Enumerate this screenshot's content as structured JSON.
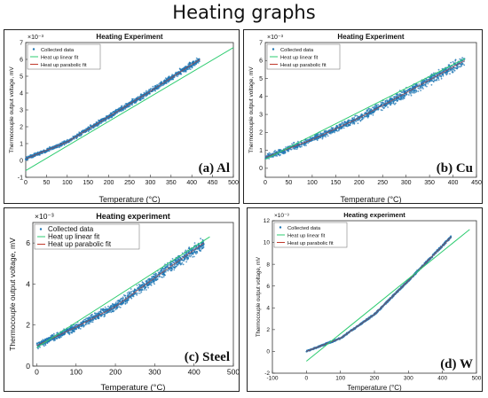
{
  "page_title": "Heating graphs",
  "chart_data": [
    {
      "id": "a",
      "type": "scatter",
      "title": "Heating Experiment",
      "xlabel": "Temperature (°C)",
      "ylabel": "Thermocouple output voltage, mV",
      "multiplier": "×10⁻³",
      "xlim": [
        0,
        500
      ],
      "ylim": [
        -1,
        7
      ],
      "xticks": [
        "0",
        "50",
        "100",
        "150",
        "200",
        "250",
        "300",
        "350",
        "400",
        "450",
        "500"
      ],
      "yticks": [
        "-1",
        "0",
        "1",
        "2",
        "3",
        "4",
        "5",
        "6",
        "7"
      ],
      "panel_label": "(a) Al",
      "legend": [
        "Collected data",
        "Heat up linear fit",
        "Heat up parabolic fit"
      ],
      "legend_position": "top-left",
      "colors": {
        "data": "#1f77b4",
        "linear": "#2ecc71",
        "parabolic": "#c0392b"
      },
      "scatter": {
        "x_max": 420,
        "spread": 0.22
      },
      "curve_parabolic": [
        [
          0,
          0.1
        ],
        [
          100,
          1.1
        ],
        [
          200,
          2.6
        ],
        [
          300,
          4.1
        ],
        [
          400,
          5.7
        ],
        [
          420,
          6.0
        ]
      ],
      "linear_fit": [
        [
          0,
          -0.6
        ],
        [
          500,
          6.7
        ]
      ]
    },
    {
      "id": "b",
      "type": "scatter",
      "title": "Heating Experiment",
      "xlabel": "Temperature (°C)",
      "ylabel": "Thermocouple output voltage, mV",
      "multiplier": "×10⁻³",
      "xlim": [
        0,
        450
      ],
      "ylim": [
        -0.5,
        7
      ],
      "xticks": [
        "0",
        "50",
        "100",
        "150",
        "200",
        "250",
        "300",
        "350",
        "400",
        "450"
      ],
      "yticks": [
        "0",
        "1",
        "2",
        "3",
        "4",
        "5",
        "6",
        "7"
      ],
      "panel_label": "(b) Cu",
      "legend": [
        "Collected data",
        "Heat up linear fit",
        "Heat up parabolic fit"
      ],
      "legend_position": "top-left",
      "colors": {
        "data": "#1f77b4",
        "linear": "#2ecc71",
        "parabolic": "#c0392b"
      },
      "scatter": {
        "x_max": 425,
        "spread": 0.35
      },
      "curve_parabolic": [
        [
          0,
          0.6
        ],
        [
          100,
          1.6
        ],
        [
          200,
          2.8
        ],
        [
          300,
          4.2
        ],
        [
          425,
          6.0
        ]
      ],
      "linear_fit": [
        [
          0,
          0.5
        ],
        [
          425,
          6.1
        ]
      ]
    },
    {
      "id": "c",
      "type": "scatter",
      "title": "Heating experiment",
      "xlabel": "Temperature (°C)",
      "ylabel": "Thermocouple output voltage, mV",
      "multiplier": "×10⁻³",
      "xlim": [
        -10,
        500
      ],
      "ylim": [
        0,
        7
      ],
      "xticks": [
        "0",
        "100",
        "200",
        "300",
        "400",
        "500"
      ],
      "yticks": [
        "0",
        "2",
        "4",
        "6"
      ],
      "panel_label": "(c) Steel",
      "legend": [
        "Collected data",
        "Heat up linear fit",
        "Heat up parabolic fit"
      ],
      "legend_position": "top-left",
      "colors": {
        "data": "#1f77b4",
        "linear": "#2ecc71",
        "parabolic": "#c0392b"
      },
      "scatter": {
        "x_max": 425,
        "spread": 0.35
      },
      "curve_parabolic": [
        [
          0,
          1.0
        ],
        [
          100,
          1.9
        ],
        [
          200,
          2.9
        ],
        [
          300,
          4.3
        ],
        [
          425,
          6.0
        ]
      ],
      "linear_fit": [
        [
          0,
          0.9
        ],
        [
          440,
          6.3
        ]
      ]
    },
    {
      "id": "d",
      "type": "scatter",
      "title": "Heating experiment",
      "xlabel": "Temperature (°C)",
      "ylabel": "Thermocouple output voltage, mV",
      "multiplier": "×10⁻³",
      "xlim": [
        -100,
        500
      ],
      "ylim": [
        -2,
        12
      ],
      "xticks": [
        "-100",
        "0",
        "100",
        "200",
        "300",
        "400",
        "500"
      ],
      "yticks": [
        "-2",
        "0",
        "2",
        "4",
        "6",
        "8",
        "10",
        "12"
      ],
      "panel_label": "(d) W",
      "legend": [
        "Collected data",
        "Heat up linear fit",
        "Heat up parabolic fit"
      ],
      "legend_position": "top-left",
      "colors": {
        "data": "#1f77b4",
        "linear": "#2ecc71",
        "parabolic": "#c0392b"
      },
      "scatter": {
        "x_max": 425,
        "spread": 0.15
      },
      "curve_parabolic": [
        [
          0,
          0.0
        ],
        [
          100,
          1.2
        ],
        [
          200,
          3.4
        ],
        [
          300,
          6.5
        ],
        [
          425,
          10.5
        ]
      ],
      "linear_fit": [
        [
          0,
          -0.9
        ],
        [
          480,
          11.2
        ]
      ]
    }
  ]
}
